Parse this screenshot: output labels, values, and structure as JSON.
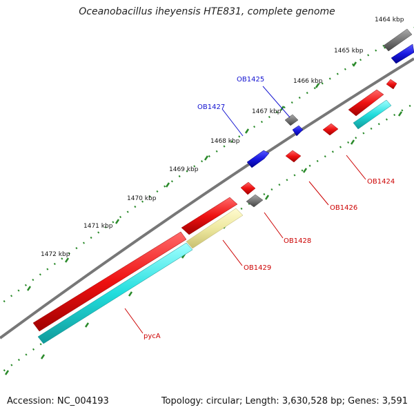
{
  "title": "Oceanobacillus iheyensis HTE831, complete genome",
  "footer": {
    "accession_label": "Accession:",
    "accession": "NC_004193",
    "topology_label": "Topology:",
    "topology": "circular;",
    "length_label": "Length:",
    "length": "3,630,528 bp;",
    "genes_label": "Genes:",
    "genes": "3,591"
  },
  "kbp_labels": [
    "1464 kbp",
    "1465 kbp",
    "1466 kbp",
    "1467 kbp",
    "1468 kbp",
    "1469 kbp",
    "1470 kbp",
    "1471 kbp",
    "1472 kbp"
  ],
  "gene_labels": {
    "OB1425": "OB1425",
    "OB1427": "OB1427",
    "OB1424": "OB1424",
    "OB1426": "OB1426",
    "OB1428": "OB1428",
    "OB1429": "OB1429",
    "pycA": "pycA"
  },
  "colors": {
    "forward_cds": "#1818e0",
    "reverse_cds": "#ee1111",
    "gene_gray": "#777777",
    "cyan_feature": "#22dddd",
    "yellow_feature": "#eee8a0",
    "backbone": "#777777",
    "tick": "#2a8a2a"
  }
}
